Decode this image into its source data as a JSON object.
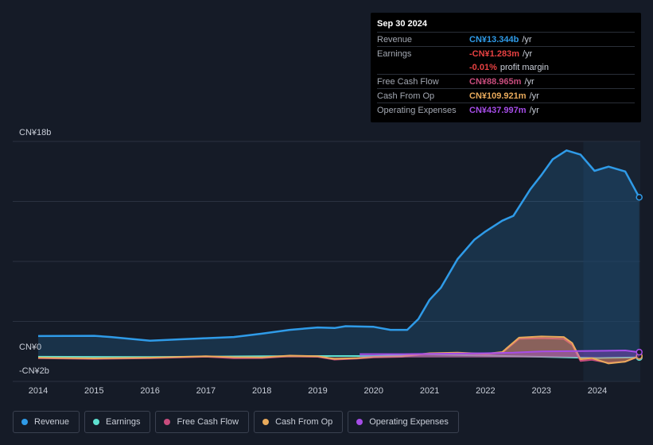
{
  "chart_data": {
    "type": "line",
    "y_axis": {
      "top_label": "CN¥18b",
      "zero_label": "CN¥0",
      "bottom_label": "-CN¥2b",
      "ylim": [
        -2,
        18
      ],
      "unit": "billion CNY"
    },
    "x_ticks": [
      "2014",
      "2015",
      "2016",
      "2017",
      "2018",
      "2019",
      "2020",
      "2021",
      "2022",
      "2023",
      "2024"
    ],
    "series": [
      {
        "name": "Revenue",
        "color": "#2f9be8",
        "fill": true,
        "points": [
          [
            2014.0,
            1.78
          ],
          [
            2015.0,
            1.8
          ],
          [
            2015.3,
            1.7
          ],
          [
            2016.0,
            1.4
          ],
          [
            2016.5,
            1.5
          ],
          [
            2017.0,
            1.6
          ],
          [
            2017.5,
            1.7
          ],
          [
            2018.0,
            1.98
          ],
          [
            2018.5,
            2.3
          ],
          [
            2019.0,
            2.5
          ],
          [
            2019.3,
            2.45
          ],
          [
            2019.5,
            2.6
          ],
          [
            2020.0,
            2.55
          ],
          [
            2020.3,
            2.3
          ],
          [
            2020.6,
            2.3
          ],
          [
            2020.8,
            3.2
          ],
          [
            2021.0,
            4.8
          ],
          [
            2021.2,
            5.8
          ],
          [
            2021.5,
            8.2
          ],
          [
            2021.8,
            9.8
          ],
          [
            2022.0,
            10.5
          ],
          [
            2022.3,
            11.4
          ],
          [
            2022.5,
            11.8
          ],
          [
            2022.8,
            14.0
          ],
          [
            2023.0,
            15.2
          ],
          [
            2023.2,
            16.5
          ],
          [
            2023.45,
            17.25
          ],
          [
            2023.7,
            16.9
          ],
          [
            2023.95,
            15.55
          ],
          [
            2024.2,
            15.9
          ],
          [
            2024.5,
            15.5
          ],
          [
            2024.75,
            13.344
          ]
        ]
      },
      {
        "name": "Earnings",
        "color": "#5ee0cf",
        "fill": false,
        "points": [
          [
            2014.0,
            0.06
          ],
          [
            2016.0,
            0.04
          ],
          [
            2018.0,
            0.1
          ],
          [
            2019.0,
            0.12
          ],
          [
            2020.0,
            0.12
          ],
          [
            2021.0,
            0.25
          ],
          [
            2022.0,
            0.15
          ],
          [
            2023.0,
            0.05
          ],
          [
            2024.0,
            -0.05
          ],
          [
            2024.75,
            -0.0013
          ]
        ]
      },
      {
        "name": "Free Cash Flow",
        "color": "#c84c7d",
        "fill": true,
        "points": [
          [
            2014.0,
            -0.06
          ],
          [
            2015.0,
            -0.12
          ],
          [
            2016.0,
            -0.06
          ],
          [
            2017.0,
            0.06
          ],
          [
            2017.5,
            -0.06
          ],
          [
            2018.0,
            -0.05
          ],
          [
            2018.5,
            0.1
          ],
          [
            2019.0,
            0.05
          ],
          [
            2019.3,
            -0.18
          ],
          [
            2019.7,
            -0.1
          ],
          [
            2020.0,
            0.0
          ],
          [
            2020.5,
            0.05
          ],
          [
            2021.0,
            0.3
          ],
          [
            2021.5,
            0.35
          ],
          [
            2022.0,
            0.25
          ],
          [
            2022.3,
            0.4
          ],
          [
            2022.6,
            1.55
          ],
          [
            2023.0,
            1.6
          ],
          [
            2023.4,
            1.55
          ],
          [
            2023.55,
            1.05
          ],
          [
            2023.7,
            -0.3
          ],
          [
            2023.9,
            -0.2
          ],
          [
            2024.2,
            -0.45
          ],
          [
            2024.5,
            -0.35
          ],
          [
            2024.75,
            0.089
          ]
        ]
      },
      {
        "name": "Cash From Op",
        "color": "#e9aa5b",
        "fill": true,
        "points": [
          [
            2014.0,
            -0.02
          ],
          [
            2015.0,
            -0.08
          ],
          [
            2016.0,
            -0.02
          ],
          [
            2017.0,
            0.1
          ],
          [
            2017.5,
            0.02
          ],
          [
            2018.0,
            0.0
          ],
          [
            2018.5,
            0.15
          ],
          [
            2019.0,
            0.1
          ],
          [
            2019.3,
            -0.12
          ],
          [
            2019.7,
            -0.05
          ],
          [
            2020.0,
            0.05
          ],
          [
            2020.5,
            0.1
          ],
          [
            2021.0,
            0.35
          ],
          [
            2021.5,
            0.4
          ],
          [
            2022.0,
            0.3
          ],
          [
            2022.3,
            0.45
          ],
          [
            2022.6,
            1.65
          ],
          [
            2023.0,
            1.75
          ],
          [
            2023.4,
            1.7
          ],
          [
            2023.55,
            1.2
          ],
          [
            2023.7,
            -0.15
          ],
          [
            2023.9,
            -0.05
          ],
          [
            2024.2,
            -0.5
          ],
          [
            2024.5,
            -0.35
          ],
          [
            2024.75,
            0.11
          ]
        ]
      },
      {
        "name": "Operating Expenses",
        "color": "#a64de8",
        "fill": true,
        "points": [
          [
            2019.75,
            0.28
          ],
          [
            2020.5,
            0.28
          ],
          [
            2021.0,
            0.3
          ],
          [
            2022.0,
            0.35
          ],
          [
            2022.5,
            0.4
          ],
          [
            2023.0,
            0.5
          ],
          [
            2023.5,
            0.52
          ],
          [
            2024.0,
            0.55
          ],
          [
            2024.5,
            0.58
          ],
          [
            2024.75,
            0.438
          ]
        ]
      }
    ],
    "highlight_from": 2023.75
  },
  "tooltip": {
    "date": "Sep 30 2024",
    "rows": [
      {
        "label": "Revenue",
        "value": "CN¥13.344b",
        "unit": "/yr",
        "color": "#2f9be8"
      },
      {
        "label": "Earnings",
        "value": "-CN¥1.283m",
        "unit": "/yr",
        "color": "#e84142"
      },
      {
        "label": "",
        "value": "-0.01%",
        "unit": "profit margin",
        "color": "#e84142"
      },
      {
        "label": "Free Cash Flow",
        "value": "CN¥88.965m",
        "unit": "/yr",
        "color": "#c84c7d"
      },
      {
        "label": "Cash From Op",
        "value": "CN¥109.921m",
        "unit": "/yr",
        "color": "#e9aa5b"
      },
      {
        "label": "Operating Expenses",
        "value": "CN¥437.997m",
        "unit": "/yr",
        "color": "#a64de8"
      }
    ]
  },
  "legend": [
    {
      "label": "Revenue",
      "color": "#2f9be8"
    },
    {
      "label": "Earnings",
      "color": "#5ee0cf"
    },
    {
      "label": "Free Cash Flow",
      "color": "#c84c7d"
    },
    {
      "label": "Cash From Op",
      "color": "#e9aa5b"
    },
    {
      "label": "Operating Expenses",
      "color": "#a64de8"
    }
  ]
}
